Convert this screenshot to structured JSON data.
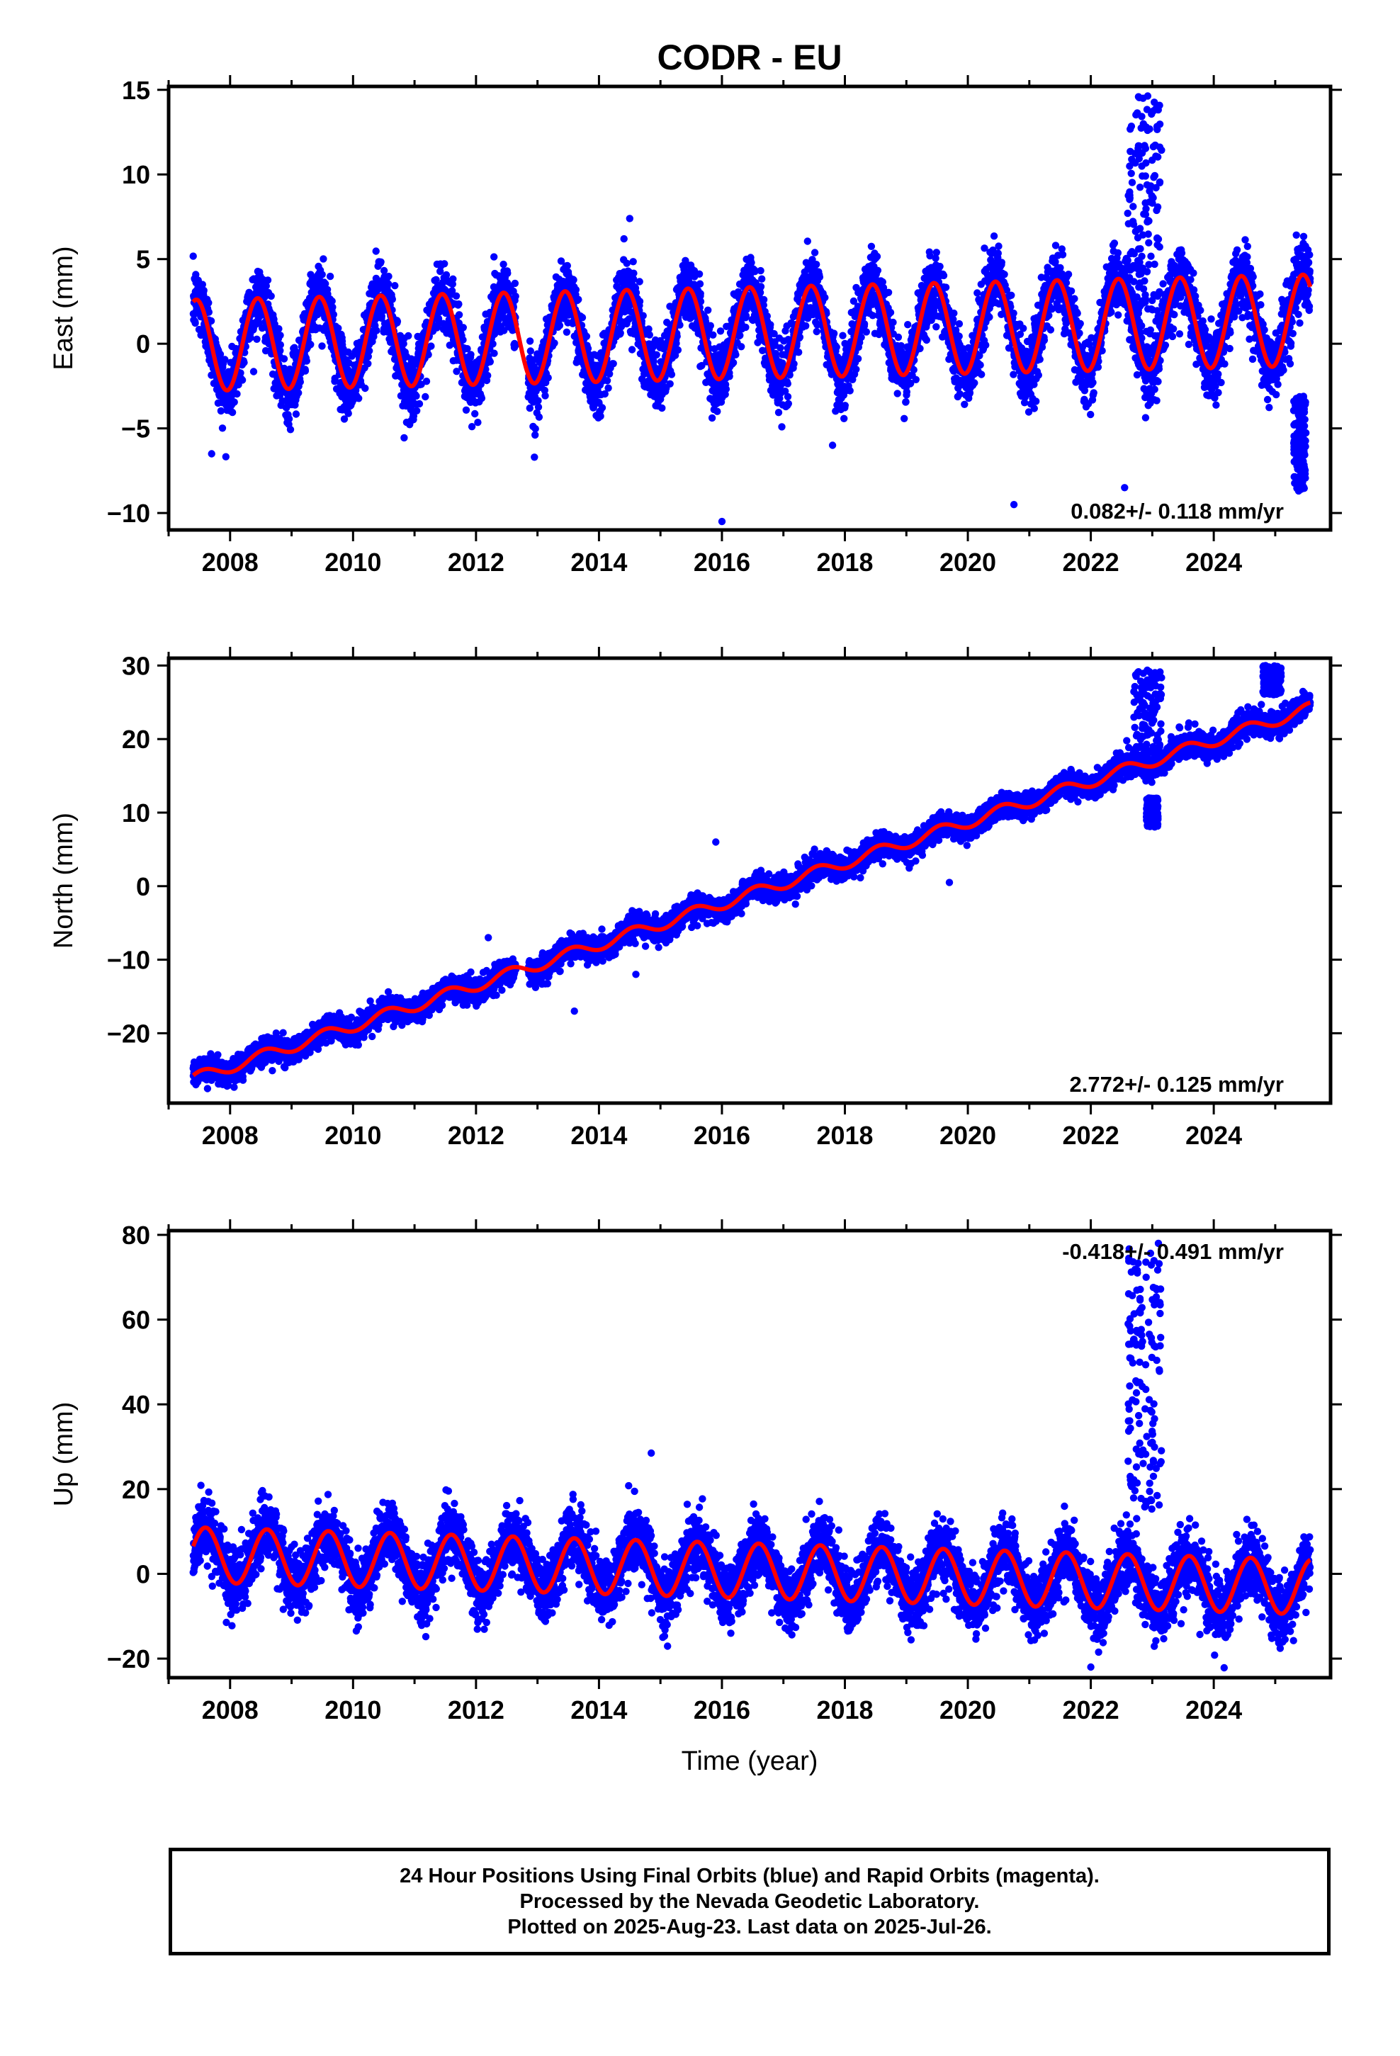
{
  "title": "CODR - EU",
  "colors": {
    "final_orbits": "#0000ff",
    "model": "#ff0000",
    "axes": "#000000"
  },
  "chart_data": [
    {
      "type": "scatter",
      "ylabel": "East (mm)",
      "xlabel": "",
      "xlim": [
        2007.0,
        2025.9
      ],
      "ylim": [
        -11,
        15.2
      ],
      "xticks": [
        2008,
        2010,
        2012,
        2014,
        2016,
        2018,
        2020,
        2022,
        2024
      ],
      "yticks": [
        -10,
        -5,
        0,
        5,
        10,
        15
      ],
      "annotation": "0.082+/- 0.118 mm/yr",
      "annotation_position": "bottom-right",
      "data_start": 2007.4,
      "data_end": 2025.57,
      "trend": {
        "intercept": -0.1,
        "rate": 0.082,
        "annual_amplitude": 2.7,
        "phase_peak": 0.45,
        "scatter": 1.3
      },
      "series": [
        {
          "name": "Final Orbits (blue)",
          "style": "points",
          "color": "#0000ff"
        },
        {
          "name": "Model fit",
          "style": "line",
          "color": "#ff0000"
        }
      ],
      "anomalies": [
        {
          "x": [
            2022.6,
            2023.15
          ],
          "y": [
            2,
            14.7
          ],
          "description": "transient"
        },
        {
          "x": [
            2025.3,
            2025.5
          ],
          "y": [
            -8.7,
            -3
          ],
          "description": "transient"
        }
      ],
      "outliers": [
        [
          2007.7,
          -6.5
        ],
        [
          2012.95,
          -6.7
        ],
        [
          2016.0,
          -10.5
        ],
        [
          2017.8,
          -6.0
        ],
        [
          2020.75,
          -9.5
        ],
        [
          2022.55,
          -8.5
        ],
        [
          2014.5,
          7.4
        ]
      ]
    },
    {
      "type": "scatter",
      "ylabel": "North (mm)",
      "xlabel": "",
      "xlim": [
        2007.0,
        2025.9
      ],
      "ylim": [
        -29.5,
        31
      ],
      "xticks": [
        2008,
        2010,
        2012,
        2014,
        2016,
        2018,
        2020,
        2022,
        2024
      ],
      "yticks": [
        -20,
        -10,
        0,
        10,
        20,
        30
      ],
      "annotation": "2.772+/- 0.125 mm/yr",
      "annotation_position": "bottom-right",
      "data_start": 2007.4,
      "data_end": 2025.57,
      "trend": {
        "intercept": -26.2,
        "rate": 2.772,
        "annual_amplitude": 0.8,
        "phase_peak": 0.55,
        "scatter": 1.1
      },
      "series": [
        {
          "name": "Final Orbits (blue)",
          "style": "points",
          "color": "#0000ff"
        },
        {
          "name": "Model fit",
          "style": "line",
          "color": "#ff0000"
        }
      ],
      "anomalies": [
        {
          "x": [
            2022.7,
            2023.15
          ],
          "y": [
            15,
            29.5
          ],
          "description": "transient"
        },
        {
          "x": [
            2022.9,
            2023.1
          ],
          "y": [
            8,
            12
          ],
          "description": "transient"
        },
        {
          "x": [
            2024.8,
            2025.1
          ],
          "y": [
            26,
            30
          ],
          "description": "transient"
        }
      ],
      "outliers": [
        [
          2012.2,
          -7.0
        ],
        [
          2013.6,
          -17.0
        ],
        [
          2015.9,
          6.0
        ],
        [
          2014.6,
          -12.0
        ],
        [
          2019.7,
          0.5
        ]
      ]
    },
    {
      "type": "scatter",
      "ylabel": "Up (mm)",
      "xlabel": "Time (year)",
      "xlim": [
        2007.0,
        2025.9
      ],
      "ylim": [
        -24.5,
        81
      ],
      "xticks": [
        2008,
        2010,
        2012,
        2014,
        2016,
        2018,
        2020,
        2022,
        2024
      ],
      "yticks": [
        -20,
        0,
        20,
        40,
        60,
        80
      ],
      "annotation": "-0.418+/- 0.491 mm/yr",
      "annotation_position": "top-right",
      "data_start": 2007.4,
      "data_end": 2025.57,
      "trend": {
        "intercept": 4.5,
        "rate": -0.418,
        "annual_amplitude": 6.5,
        "phase_peak": 0.6,
        "scatter": 5.0
      },
      "series": [
        {
          "name": "Final Orbits (blue)",
          "style": "points",
          "color": "#0000ff"
        },
        {
          "name": "Model fit",
          "style": "line",
          "color": "#ff0000"
        }
      ],
      "anomalies": [
        {
          "x": [
            2022.6,
            2023.15
          ],
          "y": [
            15,
            78
          ],
          "description": "transient"
        }
      ],
      "outliers": [
        [
          2014.85,
          28.5
        ],
        [
          2022.0,
          -22.0
        ],
        [
          2022.9,
          70.0
        ],
        [
          2023.1,
          78.0
        ]
      ]
    }
  ],
  "caption": {
    "line1": "24 Hour Positions Using Final Orbits (blue) and Rapid Orbits (magenta).",
    "line2": "Processed by the Nevada Geodetic Laboratory.",
    "line3": "Plotted on 2025-Aug-23. Last data on 2025-Jul-26."
  }
}
